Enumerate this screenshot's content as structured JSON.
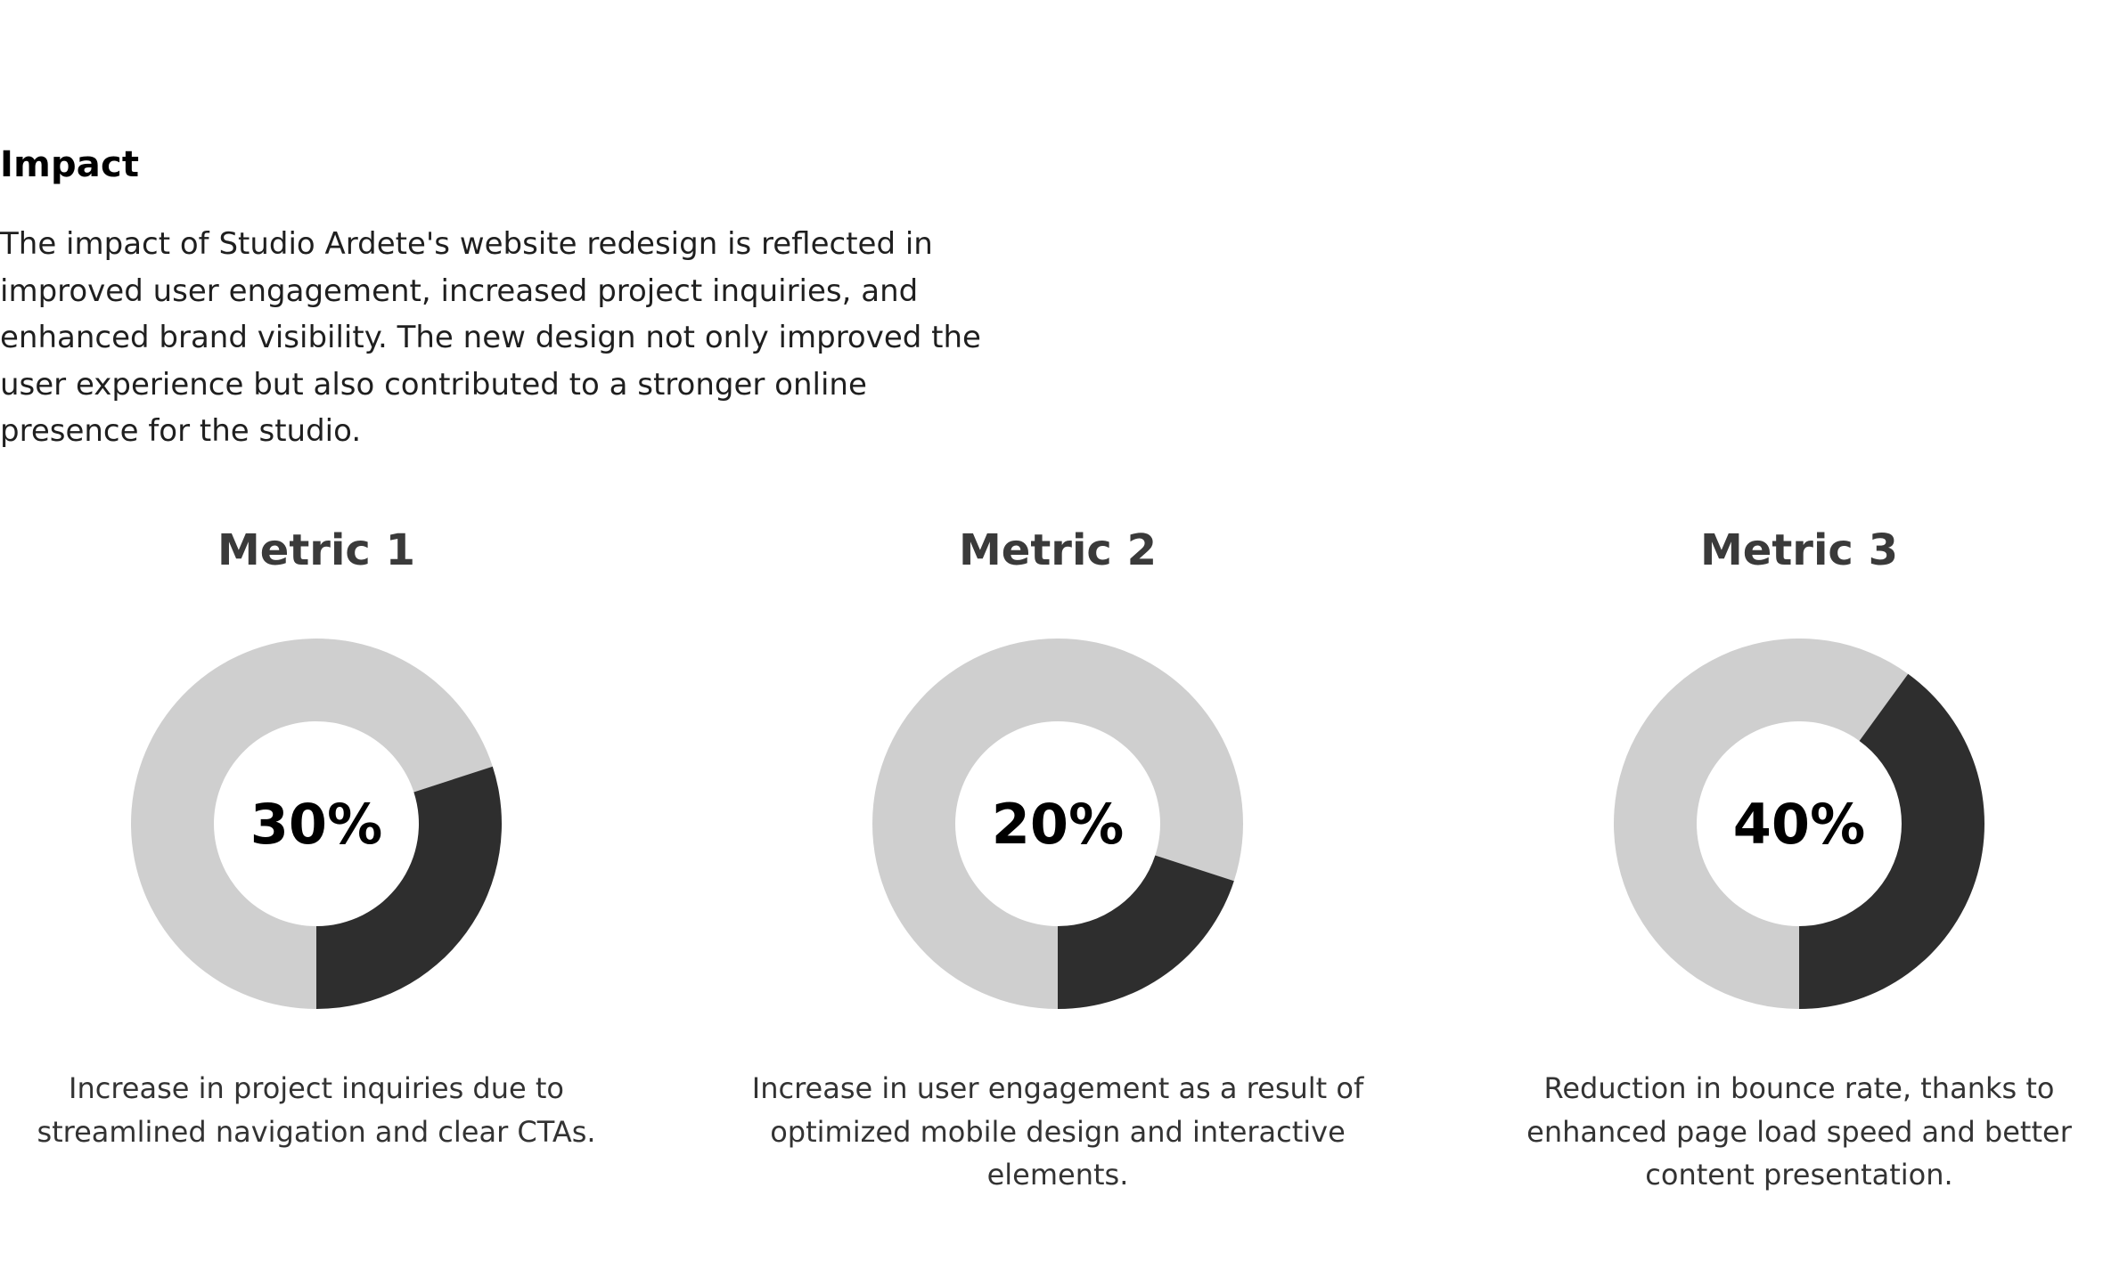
{
  "section": {
    "title": "Impact",
    "body": "The impact of Studio Ardete's website redesign is reflected in improved user engagement, increased project inquiries, and enhanced brand visibility. The new design not only improved the user experience but also contributed to a stronger online presence for the studio."
  },
  "colors": {
    "filled": "#2e2e2e",
    "remaining": "#cfcfcf",
    "background": "#ffffff"
  },
  "chart_data": [
    {
      "type": "pie",
      "title": "Metric 1",
      "label": "30%",
      "value": 30,
      "total": 100,
      "description": "Increase in project inquiries due to streamlined navigation and clear CTAs."
    },
    {
      "type": "pie",
      "title": "Metric 2",
      "label": "20%",
      "value": 20,
      "total": 100,
      "description": "Increase in user engagement as a result of optimized mobile design and interactive elements."
    },
    {
      "type": "pie",
      "title": "Metric 3",
      "label": "40%",
      "value": 40,
      "total": 100,
      "description": "Reduction in bounce rate, thanks to enhanced page load speed and better content presentation."
    }
  ]
}
